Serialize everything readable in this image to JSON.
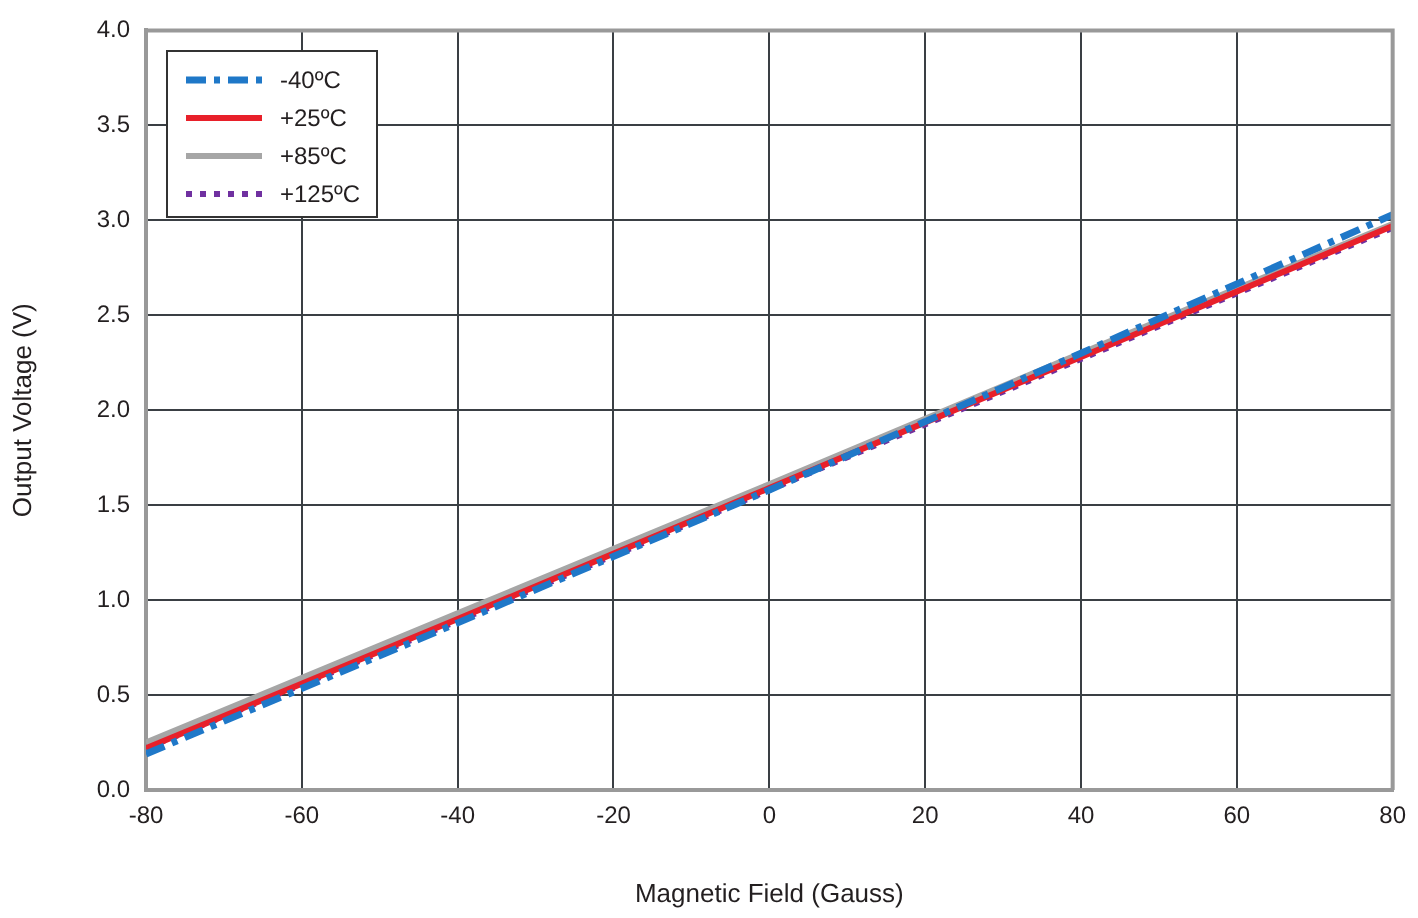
{
  "chart_data": {
    "type": "line",
    "xlabel": "Magnetic Field (Gauss)",
    "ylabel": "Output Voltage (V)",
    "x": [
      -80,
      -40,
      0,
      40,
      80
    ],
    "series": [
      {
        "name": "-40ºC",
        "color": "#1f78c8",
        "line_style": "dashed",
        "values": [
          0.19,
          0.88,
          1.58,
          2.3,
          3.03
        ]
      },
      {
        "name": "+25ºC",
        "color": "#e8202a",
        "line_style": "solid",
        "values": [
          0.22,
          0.9,
          1.59,
          2.28,
          2.97
        ]
      },
      {
        "name": "+85ºC",
        "color": "#a6a6a6",
        "line_style": "solid",
        "values": [
          0.25,
          0.93,
          1.61,
          2.3,
          2.98
        ]
      },
      {
        "name": "+125ºC",
        "color": "#7030a0",
        "line_style": "dotted",
        "values": [
          0.22,
          0.89,
          1.58,
          2.27,
          2.96
        ]
      }
    ],
    "xlim": [
      -80,
      80
    ],
    "xticks": [
      -80,
      -60,
      -40,
      -20,
      0,
      20,
      40,
      60,
      80
    ],
    "ylim": [
      0,
      4
    ],
    "yticks": [
      {
        "value": 0,
        "label": "0.0"
      },
      {
        "value": 0.5,
        "label": "0.5"
      },
      {
        "value": 1,
        "label": "1.0"
      },
      {
        "value": 1.5,
        "label": "1.5"
      },
      {
        "value": 2,
        "label": "2.0"
      },
      {
        "value": 2.5,
        "label": "2.5"
      },
      {
        "value": 3,
        "label": "3.0"
      },
      {
        "value": 3.5,
        "label": "3.5"
      },
      {
        "value": 4,
        "label": "4.0"
      }
    ],
    "grid": true,
    "legend": "top left",
    "marker": "none"
  }
}
